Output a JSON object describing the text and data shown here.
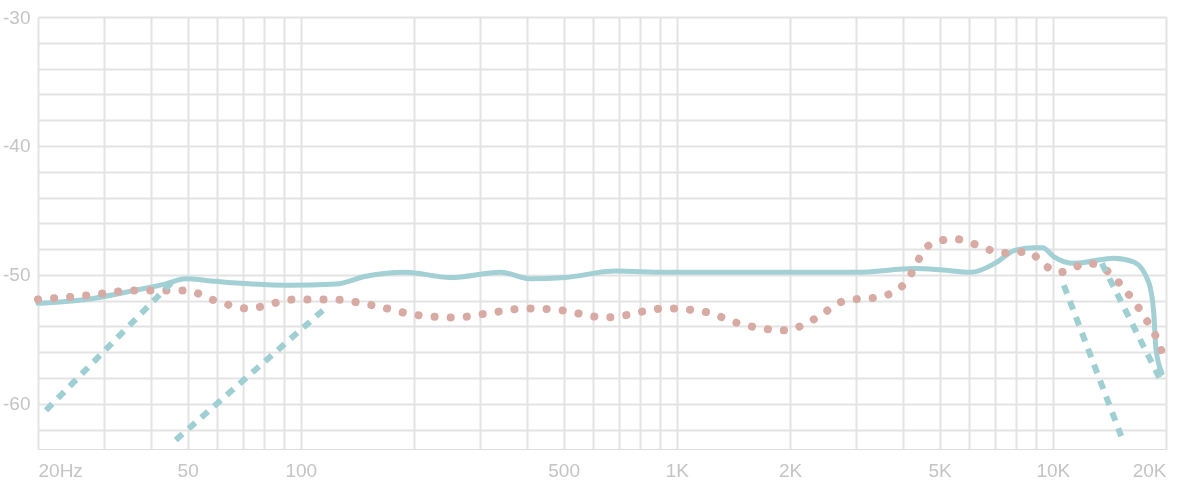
{
  "chart_data": {
    "type": "line",
    "log": "x",
    "grid": true,
    "xlim": [
      20,
      20000
    ],
    "ylim": [
      -63.5,
      -30
    ],
    "xticks": [
      {
        "value": 20,
        "label": "20Hz"
      },
      {
        "value": 30,
        "label": null
      },
      {
        "value": 40,
        "label": null
      },
      {
        "value": 50,
        "label": "50"
      },
      {
        "value": 60,
        "label": null
      },
      {
        "value": 70,
        "label": null
      },
      {
        "value": 80,
        "label": null
      },
      {
        "value": 90,
        "label": null
      },
      {
        "value": 100,
        "label": "100"
      },
      {
        "value": 200,
        "label": null
      },
      {
        "value": 300,
        "label": null
      },
      {
        "value": 400,
        "label": null
      },
      {
        "value": 500,
        "label": "500"
      },
      {
        "value": 600,
        "label": null
      },
      {
        "value": 700,
        "label": null
      },
      {
        "value": 800,
        "label": null
      },
      {
        "value": 900,
        "label": null
      },
      {
        "value": 1000,
        "label": "1K"
      },
      {
        "value": 2000,
        "label": "2K"
      },
      {
        "value": 3000,
        "label": null
      },
      {
        "value": 4000,
        "label": null
      },
      {
        "value": 5000,
        "label": "5K"
      },
      {
        "value": 6000,
        "label": null
      },
      {
        "value": 7000,
        "label": null
      },
      {
        "value": 8000,
        "label": null
      },
      {
        "value": 9000,
        "label": null
      },
      {
        "value": 10000,
        "label": "10K"
      },
      {
        "value": 20000,
        "label": "20K"
      }
    ],
    "yticks": [
      -30,
      {
        "value": -32,
        "label": null
      },
      {
        "value": -34,
        "label": null
      },
      {
        "value": -36,
        "label": null
      },
      {
        "value": -38,
        "label": null
      },
      -40,
      {
        "value": -42,
        "label": null
      },
      {
        "value": -44,
        "label": null
      },
      {
        "value": -46,
        "label": null
      },
      {
        "value": -48,
        "label": null
      },
      -50,
      {
        "value": -52,
        "label": null
      },
      {
        "value": -54,
        "label": null
      },
      {
        "value": -56,
        "label": null
      },
      {
        "value": -58,
        "label": null
      },
      -60,
      {
        "value": -62,
        "label": null
      }
    ],
    "series": [
      {
        "color": "#a3d0d4",
        "line_style": "solid",
        "x": [
          20,
          26.8,
          36.2,
          43.8,
          49.3,
          59.3,
          91.9,
          124,
          149,
          190,
          250,
          340,
          409,
          505,
          687,
          935,
          1940,
          3000,
          4310,
          5030,
          6060,
          7020,
          7920,
          8930,
          9400,
          10070,
          11380,
          14540,
          16420,
          18000,
          18550,
          18800,
          19500
        ],
        "values": [
          -52.2,
          -51.9,
          -51.2,
          -50.7,
          -50.3,
          -50.5,
          -50.8,
          -50.7,
          -50.1,
          -49.8,
          -50.2,
          -49.8,
          -50.3,
          -50.2,
          -49.7,
          -49.8,
          -49.8,
          -49.8,
          -49.5,
          -49.6,
          -49.8,
          -49.1,
          -48.1,
          -47.9,
          -47.9,
          -48.6,
          -49.1,
          -48.7,
          -49.0,
          -50.6,
          -52.9,
          -55.7,
          -57.6
        ]
      },
      {
        "color": "#d8aaa4",
        "line_style": "dotted",
        "x": [
          20,
          26.8,
          36.2,
          49.3,
          59.3,
          72,
          97,
          120,
          158,
          202,
          258,
          311,
          397,
          478,
          650,
          935,
          1160,
          1520,
          1940,
          2330,
          2800,
          3470,
          4030,
          4690,
          5450,
          6160,
          7400,
          8620,
          9460,
          10400,
          12460,
          14110,
          15490,
          17480,
          19130,
          19740
        ],
        "values": [
          -51.9,
          -51.6,
          -51.2,
          -51.2,
          -52.0,
          -52.6,
          -51.9,
          -51.9,
          -52.4,
          -53.1,
          -53.3,
          -53.0,
          -52.6,
          -52.7,
          -53.3,
          -52.6,
          -52.8,
          -53.9,
          -54.3,
          -53.4,
          -52.0,
          -51.7,
          -50.7,
          -47.7,
          -47.2,
          -47.6,
          -48.3,
          -48.2,
          -49.2,
          -49.8,
          -49.1,
          -49.8,
          -51.1,
          -53.2,
          -55.3,
          -56.4
        ]
      },
      {
        "color": "#9fcfd3",
        "line_style": "dashed",
        "x": [
          21,
          45.3
        ],
        "values": [
          -60.5,
          -50.6
        ]
      },
      {
        "color": "#9fcfd3",
        "line_style": "dashed",
        "x": [
          46.5,
          116
        ],
        "values": [
          -62.8,
          -52.6
        ]
      },
      {
        "color": "#9fcfd3",
        "line_style": "dashed",
        "x": [
          10700,
          15200
        ],
        "values": [
          -50.8,
          -62.5
        ]
      },
      {
        "color": "#9fcfd3",
        "line_style": "dashed",
        "x": [
          13500,
          19300
        ],
        "values": [
          -49.1,
          -58.1
        ]
      }
    ]
  }
}
